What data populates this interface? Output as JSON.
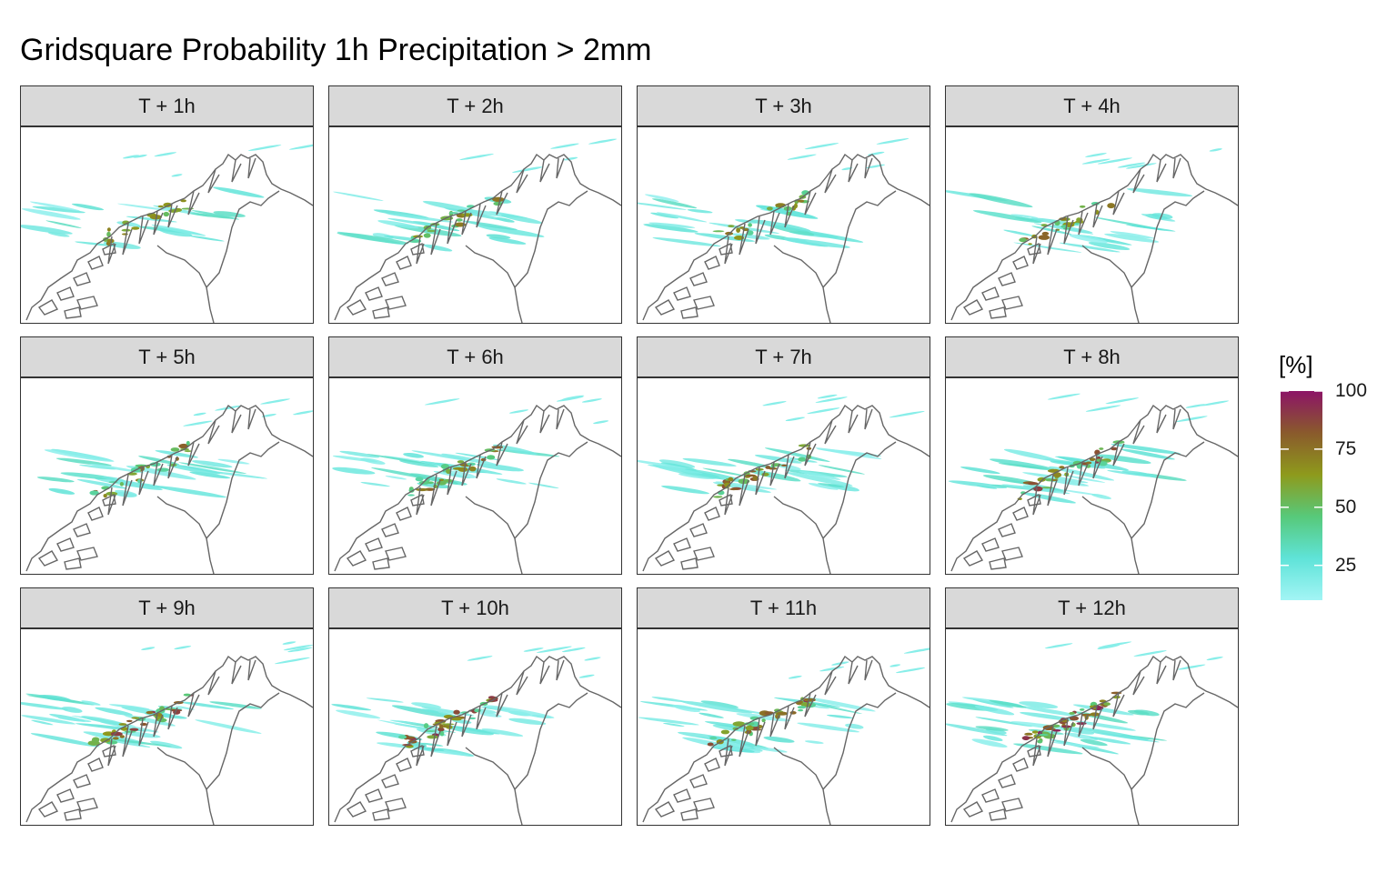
{
  "title": "Gridsquare Probability 1h Precipitation > 2mm",
  "panels": [
    {
      "label": "T + 1h"
    },
    {
      "label": "T + 2h"
    },
    {
      "label": "T + 3h"
    },
    {
      "label": "T + 4h"
    },
    {
      "label": "T + 5h"
    },
    {
      "label": "T + 6h"
    },
    {
      "label": "T + 7h"
    },
    {
      "label": "T + 8h"
    },
    {
      "label": "T + 9h"
    },
    {
      "label": "T + 10h"
    },
    {
      "label": "T + 11h"
    },
    {
      "label": "T + 12h"
    }
  ],
  "legend": {
    "title": "[%]",
    "ticks": [
      "100",
      "75",
      "50",
      "25"
    ],
    "tick_values": [
      100,
      75,
      50,
      25
    ],
    "range": [
      10,
      100
    ],
    "colors": [
      "#a3f5f5",
      "#5fe3d8",
      "#57c97a",
      "#8e9a1c",
      "#8a5a2c",
      "#8c1466"
    ]
  },
  "colors": {
    "coastline": "#666666",
    "strip": "#d9d9d9",
    "panel_border": "#333333"
  }
}
